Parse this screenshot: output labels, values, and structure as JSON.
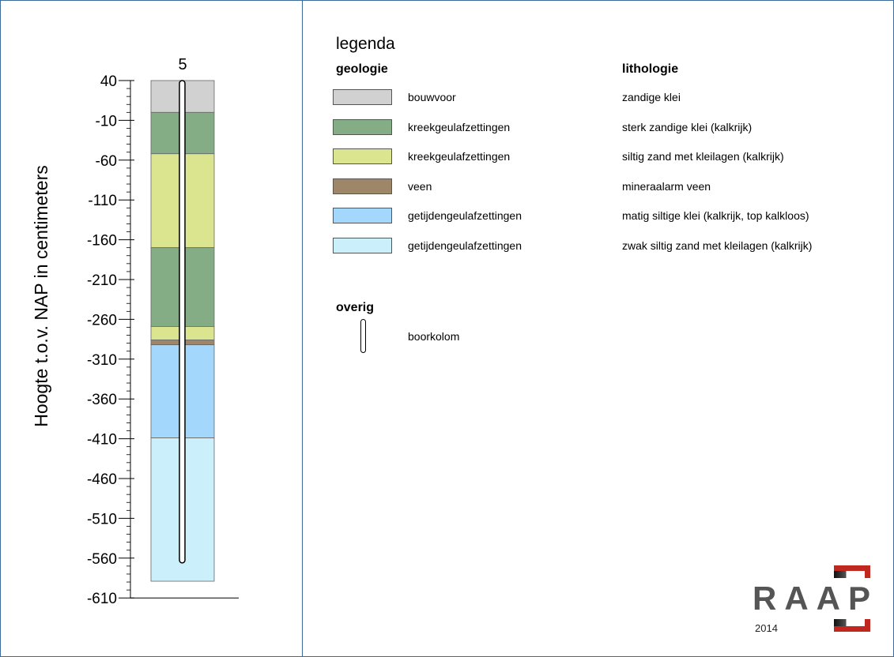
{
  "column": {
    "label": "5",
    "layers": [
      {
        "top": 40,
        "bottom": 0,
        "color": "#d1d1d1"
      },
      {
        "top": 0,
        "bottom": -52,
        "color": "#85ad85"
      },
      {
        "top": -52,
        "bottom": -170,
        "color": "#dbe590"
      },
      {
        "top": -170,
        "bottom": -269,
        "color": "#85ad85"
      },
      {
        "top": -269,
        "bottom": -286,
        "color": "#dbe590"
      },
      {
        "top": -286,
        "bottom": -292,
        "color": "#9e8769"
      },
      {
        "top": -292,
        "bottom": -409,
        "color": "#a3d7fb"
      },
      {
        "top": -409,
        "bottom": -589,
        "color": "#ccf0fb"
      }
    ],
    "bore_top": 40,
    "bore_bottom": -566
  },
  "axis": {
    "title": "Hoogte t.o.v. NAP in centimeters",
    "ticks": [
      "40",
      "-10",
      "-60",
      "-110",
      "-160",
      "-210",
      "-260",
      "-310",
      "-360",
      "-410",
      "-460",
      "-510",
      "-560",
      "-610"
    ],
    "tick_values": [
      40,
      -10,
      -60,
      -110,
      -160,
      -210,
      -260,
      -310,
      -360,
      -410,
      -460,
      -510,
      -560,
      -610
    ]
  },
  "legend": {
    "title": "legenda",
    "geology_header": "geologie",
    "lithology_header": "lithologie",
    "items": [
      {
        "geology": "bouwvoor",
        "lithology": "zandige klei",
        "color": "#d1d1d1"
      },
      {
        "geology": "kreekgeulafzettingen",
        "lithology": "sterk zandige klei (kalkrijk)",
        "color": "#85ad85"
      },
      {
        "geology": "kreekgeulafzettingen",
        "lithology": "siltig zand met kleilagen (kalkrijk)",
        "color": "#dbe590"
      },
      {
        "geology": "veen",
        "lithology": "mineraalarm veen",
        "color": "#9e8769"
      },
      {
        "geology": "getijdengeulafzettingen",
        "lithology": "matig siltige klei (kalkrijk, top kalkloos)",
        "color": "#a3d7fb"
      },
      {
        "geology": "getijdengeulafzettingen",
        "lithology": "zwak siltig zand met kleilagen (kalkrijk)",
        "color": "#ccf0fb"
      }
    ],
    "other_header": "overig",
    "borehole_label": "boorkolom"
  },
  "logo": {
    "text": "RAAP",
    "year": "2014"
  }
}
